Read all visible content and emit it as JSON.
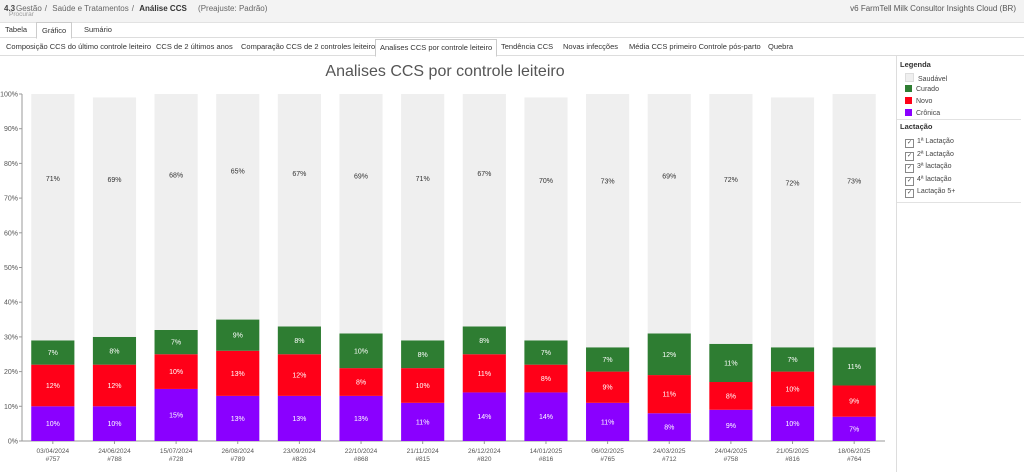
{
  "header": {
    "app_version": "4.3",
    "search_placeholder": "Procurar",
    "breadcrumbs": [
      "Gestão",
      "Saúde e Tratamentos"
    ],
    "current": "Análise CCS",
    "preset": "(Preajuste: Padrão)",
    "product": "v6 FarmTell Milk Consultor Insights Cloud (BR)"
  },
  "view_tabs": [
    "Tabela",
    "Gráfico",
    "Sumário"
  ],
  "view_tab_active": 1,
  "report_tabs": [
    "Composição CCS do último controle leiteiro",
    "CCS de 2 últimos anos",
    "Comparação CCS de 2 controles leiteiros",
    "Analises CCS por controle leiteiro",
    "Tendência CCS",
    "Novas infecções",
    "Média CCS primeiro Controle pós-parto",
    "Quebra"
  ],
  "report_tab_active": 3,
  "legend": {
    "title": "Legenda",
    "items": [
      {
        "label": "Saudável",
        "color": "#efefef"
      },
      {
        "label": "Curado",
        "color": "#2e7d32"
      },
      {
        "label": "Novo",
        "color": "#ff0018"
      },
      {
        "label": "Crônica",
        "color": "#8a00ff"
      }
    ]
  },
  "lactation": {
    "title": "Lactação",
    "check_mark": "✓",
    "items": [
      "1ª Lactação",
      "2ª Lactação",
      "3ª lactação",
      "4ª lactação",
      "Lactação 5+"
    ]
  },
  "chart_data": {
    "type": "bar",
    "stacked": true,
    "title": "Analises CCS por controle leiteiro",
    "categories": [
      {
        "date": "03/04/2024",
        "count": "#757"
      },
      {
        "date": "24/06/2024",
        "count": "#788"
      },
      {
        "date": "15/07/2024",
        "count": "#728"
      },
      {
        "date": "26/08/2024",
        "count": "#789"
      },
      {
        "date": "23/09/2024",
        "count": "#826"
      },
      {
        "date": "22/10/2024",
        "count": "#868"
      },
      {
        "date": "21/11/2024",
        "count": "#815"
      },
      {
        "date": "26/12/2024",
        "count": "#820"
      },
      {
        "date": "14/01/2025",
        "count": "#816"
      },
      {
        "date": "06/02/2025",
        "count": "#765"
      },
      {
        "date": "24/03/2025",
        "count": "#712"
      },
      {
        "date": "24/04/2025",
        "count": "#758"
      },
      {
        "date": "21/05/2025",
        "count": "#816"
      },
      {
        "date": "18/06/2025",
        "count": "#764"
      }
    ],
    "series": [
      {
        "name": "Crônica",
        "color": "#8a00ff",
        "values": [
          10,
          10,
          15,
          13,
          13,
          13,
          11,
          14,
          14,
          11,
          8,
          9,
          10,
          7
        ]
      },
      {
        "name": "Novo",
        "color": "#ff0018",
        "values": [
          12,
          12,
          10,
          13,
          12,
          8,
          10,
          11,
          8,
          9,
          11,
          8,
          10,
          9
        ]
      },
      {
        "name": "Curado",
        "color": "#2e7d32",
        "values": [
          7,
          8,
          7,
          9,
          8,
          10,
          8,
          8,
          7,
          7,
          12,
          11,
          7,
          11
        ]
      },
      {
        "name": "Saudável",
        "color": "#efefef",
        "values": [
          71,
          69,
          68,
          65,
          67,
          69,
          71,
          67,
          70,
          73,
          69,
          72,
          72,
          73
        ]
      }
    ],
    "ylim": [
      0,
      100
    ],
    "yticks": [
      0,
      10,
      20,
      30,
      40,
      50,
      60,
      70,
      80,
      90,
      100
    ],
    "ytick_suffix": "%",
    "label_suffix": "%",
    "grid": false
  }
}
